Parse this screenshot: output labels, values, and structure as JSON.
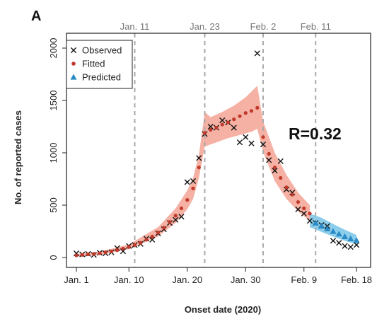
{
  "panel_label": "A",
  "chart_data": {
    "type": "scatter",
    "title": "",
    "xlabel": "Onset date (2020)",
    "ylabel": "No. of reported cases",
    "x_ticks": [
      {
        "day": 1,
        "label": "Jan. 1"
      },
      {
        "day": 10,
        "label": "Jan. 10"
      },
      {
        "day": 20,
        "label": "Jan. 20"
      },
      {
        "day": 30,
        "label": "Jan. 30"
      },
      {
        "day": 40,
        "label": "Feb. 9"
      },
      {
        "day": 49,
        "label": "Feb. 18"
      }
    ],
    "y_ticks": [
      0,
      500,
      1000,
      1500,
      2000
    ],
    "xlim": [
      1,
      49
    ],
    "ylim": [
      0,
      2000
    ],
    "event_lines": [
      {
        "day": 11,
        "label": "Jan. 11"
      },
      {
        "day": 23,
        "label": "Jan. 23"
      },
      {
        "day": 33,
        "label": "Feb. 2"
      },
      {
        "day": 42,
        "label": "Feb. 11"
      }
    ],
    "legend": {
      "position": "top-left",
      "entries": [
        {
          "label": "Observed",
          "marker": "x",
          "color": "#111111"
        },
        {
          "label": "Fitted",
          "marker": "dot",
          "color": "#c0392b"
        },
        {
          "label": "Predicted",
          "marker": "triangle",
          "color": "#2a8ac6"
        }
      ]
    },
    "annotation": "R=0.32",
    "colors": {
      "fitted_point": "#c0392b",
      "fitted_band": "#f4a99a",
      "predicted_point": "#2a8ac6",
      "predicted_band": "#7ec8e8",
      "event_line": "#aaaaaa",
      "observed": "#111111"
    },
    "series": [
      {
        "name": "Observed",
        "type": "scatter",
        "points": [
          [
            1,
            40
          ],
          [
            2,
            30
          ],
          [
            3,
            35
          ],
          [
            4,
            25
          ],
          [
            5,
            45
          ],
          [
            6,
            40
          ],
          [
            7,
            50
          ],
          [
            8,
            90
          ],
          [
            9,
            60
          ],
          [
            10,
            110
          ],
          [
            11,
            120
          ],
          [
            12,
            130
          ],
          [
            13,
            180
          ],
          [
            14,
            170
          ],
          [
            15,
            230
          ],
          [
            16,
            270
          ],
          [
            17,
            330
          ],
          [
            18,
            360
          ],
          [
            19,
            390
          ],
          [
            20,
            720
          ],
          [
            21,
            730
          ],
          [
            22,
            950
          ],
          [
            23,
            1180
          ],
          [
            24,
            1250
          ],
          [
            25,
            1240
          ],
          [
            26,
            1310
          ],
          [
            27,
            1290
          ],
          [
            28,
            1240
          ],
          [
            29,
            1100
          ],
          [
            30,
            1150
          ],
          [
            31,
            1090
          ],
          [
            32,
            1950
          ],
          [
            33,
            1080
          ],
          [
            34,
            930
          ],
          [
            35,
            830
          ],
          [
            36,
            920
          ],
          [
            37,
            650
          ],
          [
            38,
            620
          ],
          [
            39,
            460
          ],
          [
            40,
            420
          ],
          [
            41,
            350
          ],
          [
            42,
            330
          ],
          [
            43,
            310
          ],
          [
            44,
            300
          ],
          [
            45,
            160
          ],
          [
            46,
            140
          ],
          [
            47,
            110
          ],
          [
            48,
            100
          ],
          [
            49,
            120
          ]
        ]
      },
      {
        "name": "Fitted",
        "type": "line-points",
        "points": [
          [
            1,
            20
          ],
          [
            2,
            25
          ],
          [
            3,
            30
          ],
          [
            4,
            35
          ],
          [
            5,
            40
          ],
          [
            6,
            50
          ],
          [
            7,
            58
          ],
          [
            8,
            70
          ],
          [
            9,
            85
          ],
          [
            10,
            100
          ],
          [
            11,
            120
          ],
          [
            12,
            140
          ],
          [
            13,
            170
          ],
          [
            14,
            200
          ],
          [
            15,
            240
          ],
          [
            16,
            285
          ],
          [
            17,
            340
          ],
          [
            18,
            400
          ],
          [
            19,
            470
          ],
          [
            20,
            550
          ],
          [
            21,
            660
          ],
          [
            22,
            860
          ],
          [
            23,
            1190
          ],
          [
            24,
            1220
          ],
          [
            25,
            1240
          ],
          [
            26,
            1270
          ],
          [
            27,
            1290
          ],
          [
            28,
            1320
          ],
          [
            29,
            1350
          ],
          [
            30,
            1380
          ],
          [
            31,
            1400
          ],
          [
            32,
            1430
          ],
          [
            33,
            1150
          ],
          [
            34,
            990
          ],
          [
            35,
            860
          ],
          [
            36,
            760
          ],
          [
            37,
            670
          ],
          [
            38,
            600
          ],
          [
            39,
            530
          ],
          [
            40,
            470
          ],
          [
            41,
            420
          ]
        ],
        "band_low": [
          [
            1,
            10
          ],
          [
            5,
            25
          ],
          [
            10,
            80
          ],
          [
            15,
            200
          ],
          [
            18,
            330
          ],
          [
            20,
            460
          ],
          [
            21,
            560
          ],
          [
            22,
            760
          ],
          [
            23,
            1060
          ],
          [
            25,
            1100
          ],
          [
            27,
            1140
          ],
          [
            29,
            1170
          ],
          [
            31,
            1200
          ],
          [
            32,
            1230
          ],
          [
            33,
            1010
          ],
          [
            35,
            730
          ],
          [
            37,
            560
          ],
          [
            39,
            440
          ],
          [
            41,
            350
          ]
        ],
        "band_high": [
          [
            1,
            35
          ],
          [
            5,
            55
          ],
          [
            10,
            125
          ],
          [
            15,
            290
          ],
          [
            18,
            470
          ],
          [
            20,
            640
          ],
          [
            21,
            760
          ],
          [
            22,
            980
          ],
          [
            23,
            1390
          ],
          [
            24,
            1340
          ],
          [
            26,
            1390
          ],
          [
            28,
            1450
          ],
          [
            30,
            1530
          ],
          [
            32,
            1640
          ],
          [
            33,
            1300
          ],
          [
            35,
            1000
          ],
          [
            37,
            790
          ],
          [
            39,
            620
          ],
          [
            41,
            500
          ]
        ]
      },
      {
        "name": "Predicted",
        "type": "line-points",
        "points": [
          [
            42,
            330
          ],
          [
            43,
            300
          ],
          [
            44,
            275
          ],
          [
            45,
            250
          ],
          [
            46,
            225
          ],
          [
            47,
            200
          ],
          [
            48,
            180
          ],
          [
            49,
            165
          ]
        ],
        "band_low": [
          [
            41,
            290
          ],
          [
            43,
            245
          ],
          [
            45,
            200
          ],
          [
            47,
            160
          ],
          [
            49,
            125
          ]
        ],
        "band_high": [
          [
            41,
            420
          ],
          [
            43,
            380
          ],
          [
            45,
            320
          ],
          [
            47,
            265
          ],
          [
            49,
            215
          ]
        ]
      }
    ]
  }
}
